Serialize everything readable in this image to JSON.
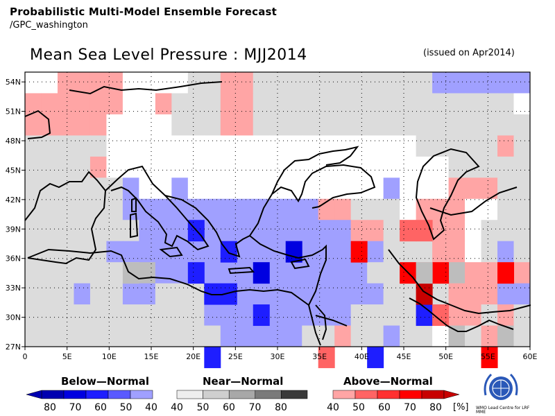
{
  "header": {
    "line1": "Probabilistic Multi-Model Ensemble Forecast",
    "line2": "/GPC_washington",
    "title": "Mean Sea Level Pressure : MJJ2014",
    "issued": "(issued on Apr2014)"
  },
  "map": {
    "lon_range": [
      0,
      60
    ],
    "lat_range": [
      27,
      55
    ],
    "lon_ticks": [
      "0",
      "5E",
      "10E",
      "15E",
      "20E",
      "25E",
      "30E",
      "35E",
      "40E",
      "45E",
      "50E",
      "55E",
      "60E"
    ],
    "lat_ticks": [
      "27N",
      "30N",
      "33N",
      "36N",
      "39N",
      "42N",
      "45N",
      "48N",
      "51N",
      "54N"
    ],
    "grid_lines": "dotted",
    "colors": {
      "N": "#dcdcdc",
      "W": "#ffffff",
      "B40": "#a0a0ff",
      "B50": "#5a5aff",
      "B60": "#1e1eff",
      "B70": "#0000e0",
      "B80": "#0000b0",
      "A40": "#ffa5a5",
      "A50": "#ff6464",
      "A60": "#ff3030",
      "A70": "#ff0000",
      "A80": "#c80000",
      "G50": "#bdbdbd",
      "G60": "#9a9a9a",
      "G70": "#6e6e6e",
      "G80": "#3a3a3a"
    },
    "cell_grid": {
      "lon_step": 2.5,
      "lat_step": 2.5,
      "rows_from_north": [
        "WWAAAAWWWWNNAANNNNNNNNNNNBBBBBB",
        "AAAAAAWWANNNAANNNNNNNNNNNNNNNNW",
        "AAAAAWWWWNNNAANNNNNNNNNNNNNNNNN",
        "NNNNNWWWWWWWWWWWWWWWWWWWNNNNNAN",
        "NNNNAWWWWWWWWWWWWWWWWWWWWWNNNNN",
        "NNNNNNBWWBWWWWWWWWWWWWBWWWAAANN",
        "NNNNNNBBBBBBBBBBBBAANNNWAAAWWNN",
        "NNNNNNNBBBBBBBBBBBBBAANAAAAWNNN",
        "NNNNNBBBBBBBBBBBBBBBBBNNNAAWNBN",
        "NNNNNNNGBBBBBBBBBBBBBNNNAAGAANA",
        "NNNBNNBBNNNBBBBBBBBBBBNNNNAAABB",
        "NNNNNNNNNNNBBBBBBBBBNNNNNBAANAN",
        "NNNNNNNNNNNNBBBBBNNANNBNNWGNAGN"
      ],
      "overrides": [
        {
          "lon": 20,
          "lat": 39,
          "c": "B60"
        },
        {
          "lon": 32.5,
          "lat": 36.5,
          "c": "B70"
        },
        {
          "lon": 27.5,
          "lat": 34,
          "c": "B70"
        },
        {
          "lon": 25,
          "lat": 37,
          "c": "B60"
        },
        {
          "lon": 22.5,
          "lat": 32,
          "c": "B60"
        },
        {
          "lon": 25,
          "lat": 31.5,
          "c": "B60"
        },
        {
          "lon": 27.5,
          "lat": 29.5,
          "c": "B60"
        },
        {
          "lon": 22.5,
          "lat": 27,
          "c": "B60"
        },
        {
          "lon": 42.5,
          "lat": 27,
          "c": "B60"
        },
        {
          "lon": 47.5,
          "lat": 29.5,
          "c": "B60"
        },
        {
          "lon": 20,
          "lat": 34,
          "c": "B60"
        },
        {
          "lon": 40,
          "lat": 36.5,
          "c": "A70"
        },
        {
          "lon": 45,
          "lat": 34,
          "c": "A70"
        },
        {
          "lon": 50,
          "lat": 34,
          "c": "A70"
        },
        {
          "lon": 57.5,
          "lat": 34,
          "c": "A70"
        },
        {
          "lon": 47.5,
          "lat": 32,
          "c": "A80"
        },
        {
          "lon": 55,
          "lat": 27,
          "c": "A70"
        },
        {
          "lon": 45,
          "lat": 39,
          "c": "A50"
        },
        {
          "lon": 47.5,
          "lat": 39,
          "c": "A50"
        },
        {
          "lon": 50,
          "lat": 29.5,
          "c": "A50"
        },
        {
          "lon": 35,
          "lat": 27,
          "c": "A50"
        },
        {
          "lon": 47.5,
          "lat": 34,
          "c": "G50"
        },
        {
          "lon": 12.5,
          "lat": 34,
          "c": "G50"
        }
      ]
    }
  },
  "legend": {
    "below_title": "Below—Normal",
    "near_title": "Near—Normal",
    "above_title": "Above—Normal",
    "below_labels": [
      "80",
      "70",
      "60",
      "50",
      "40"
    ],
    "near_labels": [
      "40",
      "50",
      "60",
      "70",
      "80"
    ],
    "above_labels": [
      "40",
      "50",
      "60",
      "70",
      "80"
    ],
    "pct_unit": "[%]",
    "below_colors": [
      "#0000b0",
      "#0000e0",
      "#1e1eff",
      "#5a5aff",
      "#a0a0ff"
    ],
    "near_colors": [
      "#eeeeee",
      "#cfcfcf",
      "#a8a8a8",
      "#7a7a7a",
      "#3a3a3a"
    ],
    "above_colors": [
      "#ffa5a5",
      "#ff6464",
      "#ff3030",
      "#ff0000",
      "#c80000"
    ]
  },
  "logo": {
    "caption": "WMO Lead Centre for LRF MME"
  }
}
